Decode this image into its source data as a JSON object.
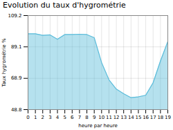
{
  "chart_data": {
    "type": "area",
    "title": "Evolution du taux d'hygrométrie",
    "xlabel": "heure par heure",
    "ylabel": "Taux hygrométrie %",
    "x": [
      0,
      1,
      2,
      3,
      4,
      5,
      6,
      7,
      8,
      9,
      10,
      11,
      12,
      13,
      14,
      15,
      16,
      17,
      18,
      19
    ],
    "values": [
      97.5,
      97.5,
      96.5,
      96.8,
      94.0,
      97.0,
      97.0,
      97.2,
      97.0,
      95.0,
      79.0,
      68.0,
      62.0,
      59.0,
      56.5,
      57.0,
      58.0,
      66.0,
      80.0,
      92.5
    ],
    "color": "#5bbcda",
    "xlim": [
      0,
      19
    ],
    "xticks": [
      0,
      1,
      2,
      3,
      4,
      5,
      6,
      7,
      8,
      9,
      10,
      11,
      12,
      13,
      14,
      15,
      16,
      17,
      18,
      19
    ],
    "ylim": [
      48.8,
      109.2
    ],
    "yticks": [
      48.8,
      68.9,
      89.1,
      109.2
    ],
    "grid": true
  }
}
